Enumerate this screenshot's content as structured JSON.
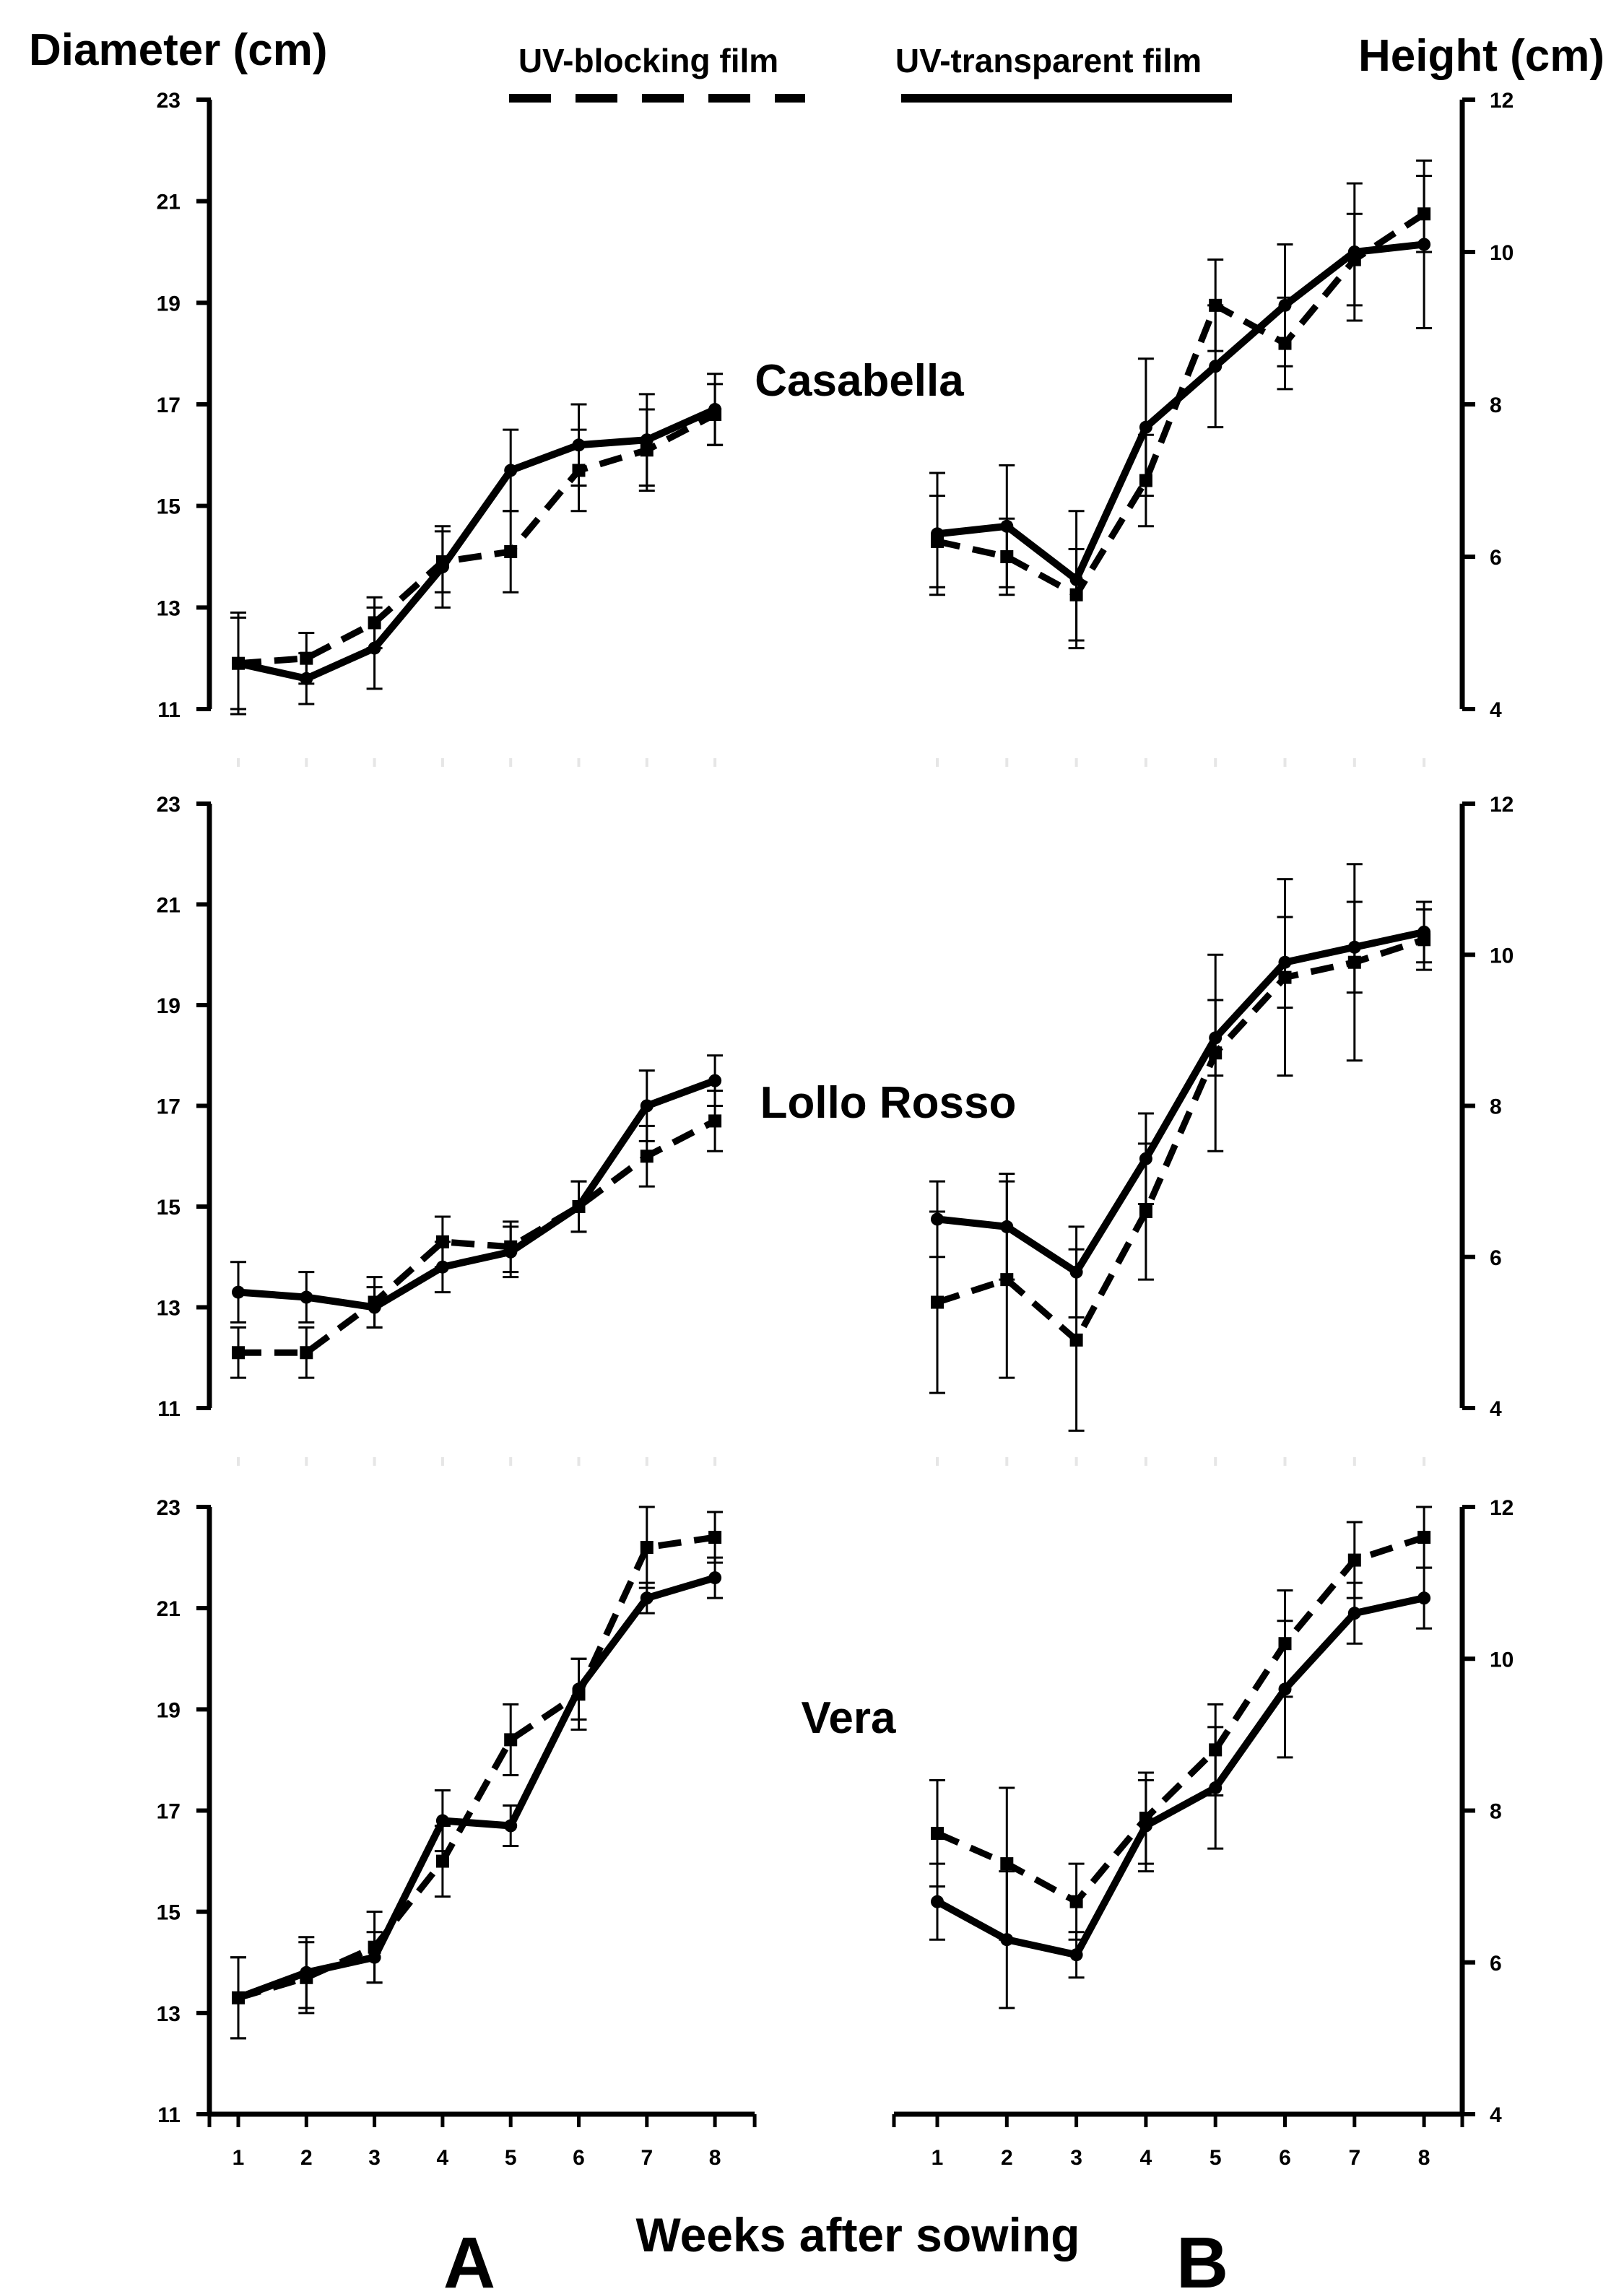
{
  "chart_data": {
    "type": "line",
    "y_left_label": "Diameter (cm)",
    "y_right_label": "Height (cm)",
    "x_label": "Weeks after sowing",
    "panel_letters": [
      "A",
      "B"
    ],
    "legend": [
      {
        "name": "UV-blocking film",
        "style": "dashed",
        "marker": "square"
      },
      {
        "name": "UV-transparent film",
        "style": "solid",
        "marker": "circle"
      }
    ],
    "x": [
      1,
      2,
      3,
      4,
      5,
      6,
      7,
      8
    ],
    "x_tick_labels": [
      "1",
      "2",
      "3",
      "4",
      "5",
      "6",
      "7",
      "8"
    ],
    "diameter_axis": {
      "ylim": [
        11,
        23
      ],
      "ticks": [
        11,
        13,
        15,
        17,
        19,
        21,
        23
      ]
    },
    "height_axis": {
      "ylim": [
        4,
        12
      ],
      "ticks": [
        4,
        6,
        8,
        10,
        12
      ]
    },
    "rows": [
      {
        "cultivar": "Casabella",
        "diameter": {
          "uv_blocking": [
            11.9,
            12.0,
            12.7,
            13.9,
            14.1,
            15.7,
            16.1,
            16.8
          ],
          "uv_blocking_err": [
            0.9,
            0.5,
            0.5,
            0.6,
            0.8,
            0.8,
            0.8,
            0.6
          ],
          "uv_transparent": [
            11.9,
            11.6,
            12.2,
            13.8,
            15.7,
            16.2,
            16.3,
            16.9
          ],
          "uv_transparent_err": [
            1.0,
            0.5,
            0.8,
            0.8,
            0.8,
            0.8,
            0.9,
            0.7
          ]
        },
        "height": {
          "uv_blocking": [
            6.2,
            6.0,
            5.5,
            7.0,
            9.3,
            8.8,
            9.9,
            10.5
          ],
          "uv_blocking_err": [
            0.6,
            0.5,
            0.6,
            0.6,
            0.6,
            0.6,
            0.6,
            0.5
          ],
          "uv_transparent": [
            6.3,
            6.4,
            5.7,
            7.7,
            8.5,
            9.3,
            10.0,
            10.1
          ],
          "uv_transparent_err": [
            0.8,
            0.8,
            0.9,
            0.9,
            0.8,
            0.8,
            0.9,
            1.1
          ]
        }
      },
      {
        "cultivar": "Lollo Rosso",
        "diameter": {
          "uv_blocking": [
            12.1,
            12.1,
            13.1,
            14.3,
            14.2,
            15.0,
            16.0,
            16.7
          ],
          "uv_blocking_err": [
            0.5,
            0.5,
            0.5,
            0.5,
            0.5,
            0.5,
            0.6,
            0.6
          ],
          "uv_transparent": [
            13.3,
            13.2,
            13.0,
            13.8,
            14.1,
            15.0,
            17.0,
            17.5
          ],
          "uv_transparent_err": [
            0.6,
            0.5,
            0.4,
            0.5,
            0.5,
            0.5,
            0.7,
            0.5
          ]
        },
        "height": {
          "uv_blocking": [
            5.4,
            5.7,
            4.9,
            6.6,
            8.7,
            9.7,
            9.9,
            10.2
          ],
          "uv_blocking_err": [
            1.2,
            1.3,
            1.2,
            0.9,
            1.3,
            1.3,
            1.3,
            0.4
          ],
          "uv_transparent": [
            6.5,
            6.4,
            5.8,
            7.3,
            8.9,
            9.9,
            10.1,
            10.3
          ],
          "uv_transparent_err": [
            0.5,
            0.7,
            0.6,
            0.6,
            0.5,
            0.6,
            0.6,
            0.4
          ]
        }
      },
      {
        "cultivar": "Vera",
        "diameter": {
          "uv_blocking": [
            13.3,
            13.7,
            14.3,
            16.0,
            18.4,
            19.3,
            22.2,
            22.4
          ],
          "uv_blocking_err": [
            0.8,
            0.7,
            0.7,
            0.7,
            0.7,
            0.7,
            0.8,
            0.5
          ],
          "uv_transparent": [
            13.3,
            13.8,
            14.1,
            16.8,
            16.7,
            19.4,
            21.2,
            21.6
          ],
          "uv_transparent_err": [
            0.8,
            0.7,
            0.5,
            0.6,
            0.4,
            0.6,
            0.3,
            0.4
          ]
        },
        "height": {
          "uv_blocking": [
            7.7,
            7.3,
            6.8,
            7.9,
            8.8,
            10.2,
            11.3,
            11.6
          ],
          "uv_blocking_err": [
            0.7,
            1.0,
            0.5,
            0.6,
            0.6,
            0.7,
            0.5,
            0.4
          ],
          "uv_transparent": [
            6.8,
            6.3,
            6.1,
            7.8,
            8.3,
            9.6,
            10.6,
            10.8
          ],
          "uv_transparent_err": [
            0.5,
            0.9,
            0.3,
            0.6,
            0.8,
            0.9,
            0.4,
            0.4
          ]
        }
      }
    ]
  }
}
